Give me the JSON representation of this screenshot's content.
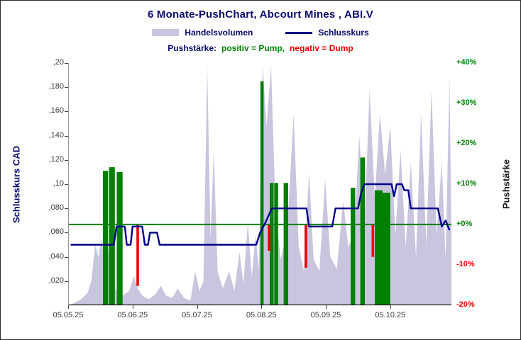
{
  "title": "6 Monate-PushChart,  Abcourt Mines , ABI.V",
  "legend": {
    "volume_label": "Handelsvolumen",
    "close_label": "Schlusskurs",
    "push_prefix": "Pushstärke:",
    "pump_label": "positiv = Pump,",
    "dump_label": "negativ = Dump"
  },
  "colors": {
    "title_text": "#0b0b6b",
    "navy": "#0b0b6b",
    "volume": "#c9c5df",
    "close": "#00008b",
    "pump": "#008000",
    "dump": "#ee0000",
    "zero_line": "#008000",
    "axis_text": "#3a3a3a",
    "axis_line": "#000000"
  },
  "left_axis": {
    "label": "Schlusskurs CAD",
    "min": 0,
    "max": 0.2,
    "ticks": [
      {
        "label": ",20",
        "value": 0.2
      },
      {
        "label": ",180",
        "value": 0.18
      },
      {
        "label": ",160",
        "value": 0.16
      },
      {
        "label": ",140",
        "value": 0.14
      },
      {
        "label": ",120",
        "value": 0.12
      },
      {
        "label": ",10",
        "value": 0.1
      },
      {
        "label": ",080",
        "value": 0.08
      },
      {
        "label": ",060",
        "value": 0.06
      },
      {
        "label": ",040",
        "value": 0.04
      },
      {
        "label": ",020",
        "value": 0.02
      }
    ]
  },
  "right_axis": {
    "label": "Pushstärke",
    "zero_value_cad": 0.0667,
    "cad_per_10pct": 0.03335,
    "ticks": [
      {
        "label": "+40%",
        "pct": 40
      },
      {
        "label": "+30%",
        "pct": 30
      },
      {
        "label": "+20%",
        "pct": 20
      },
      {
        "label": "+10%",
        "pct": 10
      },
      {
        "label": "+0%",
        "pct": 0
      },
      {
        "label": "-10%",
        "pct": -10
      },
      {
        "label": "-20%",
        "pct": -20
      }
    ]
  },
  "x_axis": {
    "t_max": 5.95,
    "ticks": [
      {
        "label": "05.05.25",
        "t": 0
      },
      {
        "label": "05.06.25",
        "t": 1
      },
      {
        "label": "05.07.25",
        "t": 2
      },
      {
        "label": "05.08.25",
        "t": 3
      },
      {
        "label": "05.09.25",
        "t": 4
      },
      {
        "label": "05.10.25",
        "t": 5
      }
    ]
  },
  "chart_data": {
    "type": "composite",
    "title": "6 Monate-PushChart, Abcourt Mines, ABI.V",
    "x_unit": "months since 05.05.25",
    "y_unit_left": "CAD",
    "y_unit_right": "Pushstärke %",
    "ylim_left": [
      0,
      0.2
    ],
    "ylim_right": [
      -20,
      40
    ],
    "zero_line_cad": 0.0667,
    "grid": false,
    "legend_position": "top",
    "series": [
      {
        "name": "Handelsvolumen",
        "kind": "area",
        "color_key": "volume",
        "points": [
          [
            0.0,
            0.0
          ],
          [
            0.1,
            0.002
          ],
          [
            0.2,
            0.005
          ],
          [
            0.3,
            0.01
          ],
          [
            0.36,
            0.02
          ],
          [
            0.42,
            0.05
          ],
          [
            0.47,
            0.04
          ],
          [
            0.52,
            0.055
          ],
          [
            0.57,
            0.03
          ],
          [
            0.62,
            0.048
          ],
          [
            0.68,
            0.022
          ],
          [
            0.75,
            0.012
          ],
          [
            0.85,
            0.008
          ],
          [
            0.95,
            0.012
          ],
          [
            1.02,
            0.024
          ],
          [
            1.08,
            0.014
          ],
          [
            1.15,
            0.008
          ],
          [
            1.25,
            0.005
          ],
          [
            1.35,
            0.009
          ],
          [
            1.44,
            0.016
          ],
          [
            1.52,
            0.008
          ],
          [
            1.62,
            0.006
          ],
          [
            1.7,
            0.014
          ],
          [
            1.8,
            0.006
          ],
          [
            1.9,
            0.004
          ],
          [
            1.97,
            0.028
          ],
          [
            2.04,
            0.012
          ],
          [
            2.1,
            0.02
          ],
          [
            2.16,
            0.198
          ],
          [
            2.21,
            0.055
          ],
          [
            2.26,
            0.128
          ],
          [
            2.32,
            0.028
          ],
          [
            2.4,
            0.014
          ],
          [
            2.5,
            0.028
          ],
          [
            2.58,
            0.012
          ],
          [
            2.66,
            0.044
          ],
          [
            2.72,
            0.018
          ],
          [
            2.79,
            0.068
          ],
          [
            2.85,
            0.024
          ],
          [
            2.91,
            0.058
          ],
          [
            2.96,
            0.03
          ],
          [
            3.02,
            0.198
          ],
          [
            3.08,
            0.148
          ],
          [
            3.15,
            0.198
          ],
          [
            3.22,
            0.078
          ],
          [
            3.3,
            0.038
          ],
          [
            3.4,
            0.06
          ],
          [
            3.5,
            0.158
          ],
          [
            3.58,
            0.048
          ],
          [
            3.66,
            0.028
          ],
          [
            3.74,
            0.11
          ],
          [
            3.81,
            0.038
          ],
          [
            3.9,
            0.028
          ],
          [
            3.99,
            0.104
          ],
          [
            4.07,
            0.04
          ],
          [
            4.17,
            0.03
          ],
          [
            4.27,
            0.086
          ],
          [
            4.35,
            0.048
          ],
          [
            4.44,
            0.06
          ],
          [
            4.52,
            0.14
          ],
          [
            4.6,
            0.068
          ],
          [
            4.68,
            0.178
          ],
          [
            4.76,
            0.088
          ],
          [
            4.84,
            0.158
          ],
          [
            4.92,
            0.108
          ],
          [
            5.0,
            0.148
          ],
          [
            5.08,
            0.058
          ],
          [
            5.16,
            0.128
          ],
          [
            5.24,
            0.048
          ],
          [
            5.32,
            0.118
          ],
          [
            5.4,
            0.04
          ],
          [
            5.48,
            0.158
          ],
          [
            5.56,
            0.05
          ],
          [
            5.64,
            0.178
          ],
          [
            5.72,
            0.058
          ],
          [
            5.8,
            0.118
          ],
          [
            5.86,
            0.038
          ],
          [
            5.92,
            0.188
          ],
          [
            5.95,
            0.06
          ]
        ]
      },
      {
        "name": "Schlusskurs",
        "kind": "line",
        "color_key": "close",
        "points": [
          [
            0.04,
            0.05
          ],
          [
            0.71,
            0.05
          ],
          [
            0.75,
            0.065
          ],
          [
            0.88,
            0.065
          ],
          [
            0.91,
            0.05
          ],
          [
            0.97,
            0.05
          ],
          [
            1.0,
            0.065
          ],
          [
            1.15,
            0.065
          ],
          [
            1.19,
            0.05
          ],
          [
            1.24,
            0.05
          ],
          [
            1.27,
            0.06
          ],
          [
            1.38,
            0.06
          ],
          [
            1.42,
            0.05
          ],
          [
            2.92,
            0.05
          ],
          [
            2.98,
            0.06
          ],
          [
            3.06,
            0.068
          ],
          [
            3.16,
            0.08
          ],
          [
            3.7,
            0.08
          ],
          [
            3.74,
            0.065
          ],
          [
            4.1,
            0.065
          ],
          [
            4.15,
            0.08
          ],
          [
            4.5,
            0.08
          ],
          [
            4.55,
            0.093
          ],
          [
            4.6,
            0.1
          ],
          [
            5.02,
            0.1
          ],
          [
            5.06,
            0.09
          ],
          [
            5.1,
            0.1
          ],
          [
            5.18,
            0.1
          ],
          [
            5.22,
            0.095
          ],
          [
            5.28,
            0.095
          ],
          [
            5.32,
            0.08
          ],
          [
            5.74,
            0.08
          ],
          [
            5.8,
            0.065
          ],
          [
            5.86,
            0.07
          ],
          [
            5.92,
            0.062
          ]
        ]
      },
      {
        "name": "Pushstärke positiv (Pump)",
        "kind": "bar",
        "color_key": "pump",
        "baseline_cad": 0,
        "bars": [
          [
            0.58,
            0.111,
            0.08
          ],
          [
            0.68,
            0.114,
            0.09
          ],
          [
            0.8,
            0.11,
            0.09
          ],
          [
            3.01,
            0.185,
            0.05
          ],
          [
            3.16,
            0.101,
            0.06
          ],
          [
            3.23,
            0.101,
            0.06
          ],
          [
            3.38,
            0.101,
            0.07
          ],
          [
            4.42,
            0.097,
            0.07
          ],
          [
            4.57,
            0.122,
            0.07
          ],
          [
            4.82,
            0.095,
            0.12
          ],
          [
            4.94,
            0.093,
            0.12
          ]
        ]
      },
      {
        "name": "Pushstärke negativ (Dump)",
        "kind": "bar",
        "color_key": "dump",
        "baseline_cad": 0.0667,
        "bars": [
          [
            1.08,
            0.016,
            0.04
          ],
          [
            3.12,
            0.045,
            0.04
          ],
          [
            3.69,
            0.031,
            0.04
          ],
          [
            4.73,
            0.04,
            0.04
          ]
        ]
      }
    ]
  }
}
